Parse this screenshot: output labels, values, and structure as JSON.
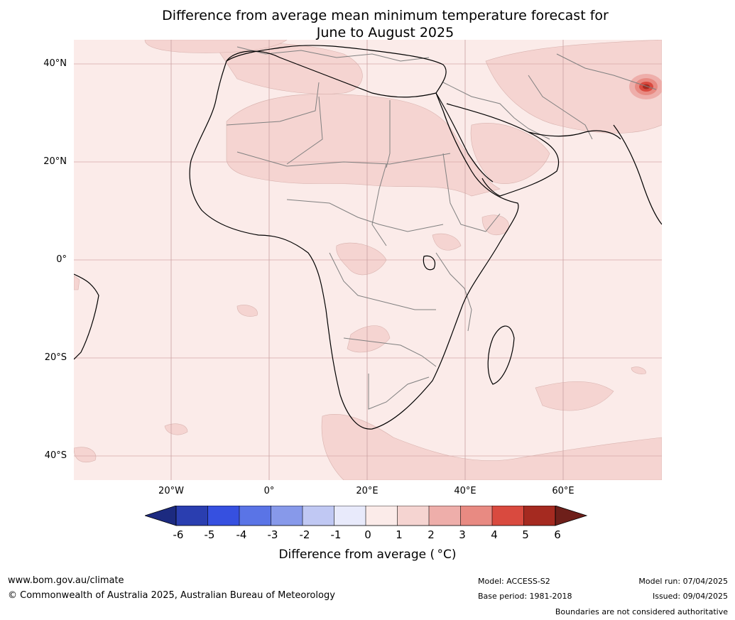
{
  "title_line1": "Difference from average mean minimum temperature forecast for",
  "title_line2": "June to August 2025",
  "map": {
    "background_color": "#fbebe9",
    "anomaly_band_color": "#f5d4d1",
    "hotspot_colors": [
      "#e88a82",
      "#d94a3f",
      "#a52a20"
    ],
    "coast_color": "#000000",
    "border_color": "#808080",
    "gridline_color": "#d6a8a8"
  },
  "lat_labels": [
    "40°N",
    "20°N",
    "0°",
    "20°S",
    "40°S"
  ],
  "lon_labels": [
    "20°W",
    "0°",
    "20°E",
    "40°E",
    "60°E"
  ],
  "colorbar": {
    "ticks": [
      "-6",
      "-5",
      "-4",
      "-3",
      "-2",
      "-1",
      "0",
      "1",
      "2",
      "3",
      "4",
      "5",
      "6"
    ],
    "colors": [
      "#1c2a80",
      "#2a3eb0",
      "#3650e0",
      "#5a74e6",
      "#8799ea",
      "#c0c8f3",
      "#e8eafb",
      "#fbebe9",
      "#f5d4d1",
      "#eeaeaa",
      "#e88a82",
      "#d94a3f",
      "#a52a20",
      "#6e1f1a"
    ],
    "label": "Difference from average ( °C)"
  },
  "footer": {
    "url": "www.bom.gov.au/climate",
    "copyright": "© Commonwealth of Australia 2025, Australian Bureau of Meteorology",
    "model": "Model: ACCESS-S2",
    "base_period": "Base period: 1981-2018",
    "model_run": "Model run: 07/04/2025",
    "issued": "Issued: 09/04/2025",
    "disclaimer": "Boundaries are not considered authoritative"
  }
}
